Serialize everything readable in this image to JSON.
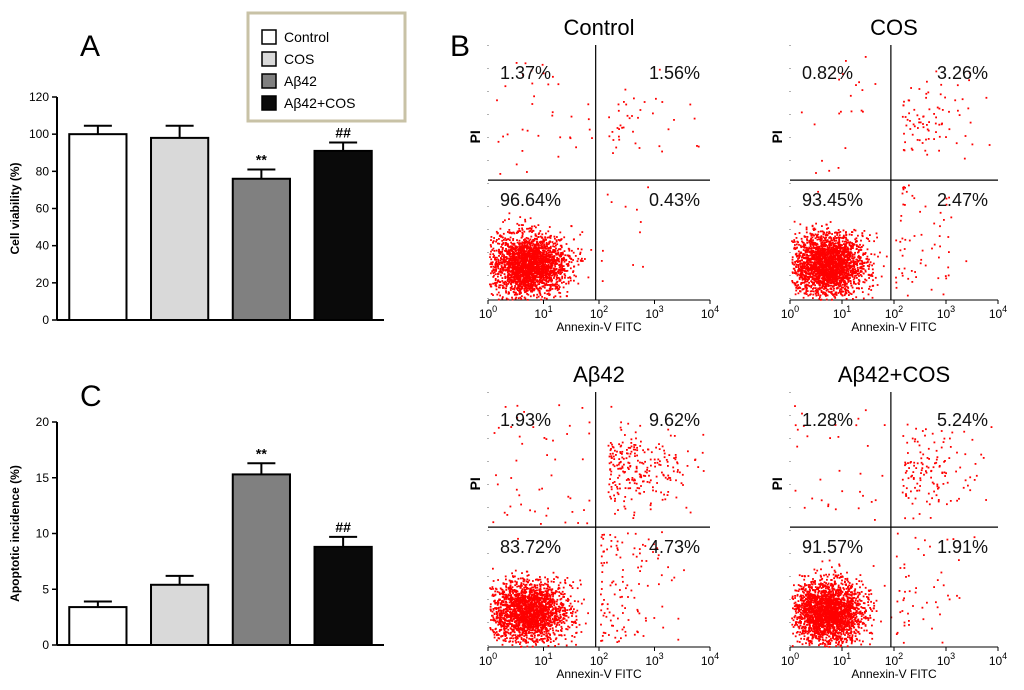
{
  "panels": {
    "A": "A",
    "B": "B",
    "C": "C"
  },
  "legend": {
    "items": [
      {
        "label": "Control",
        "color": "#ffffff"
      },
      {
        "label": "COS",
        "color": "#d9d9d9"
      },
      {
        "label": "Aβ42",
        "color": "#808080"
      },
      {
        "label": "Aβ42+COS",
        "color": "#0a0a0a"
      }
    ]
  },
  "chart_data": [
    {
      "id": "A",
      "type": "bar",
      "categories": [
        "Control",
        "COS",
        "Aβ42",
        "Aβ42+COS"
      ],
      "values": [
        100,
        98,
        76,
        91
      ],
      "errors": [
        4.5,
        6.5,
        5,
        4.5
      ],
      "annotations": [
        "",
        "",
        "**",
        "##"
      ],
      "colors": [
        "#ffffff",
        "#d9d9d9",
        "#808080",
        "#0a0a0a"
      ],
      "ylabel": "Cell viability (%)",
      "ylim": [
        0,
        120
      ],
      "yticks": [
        0,
        20,
        40,
        60,
        80,
        100,
        120
      ]
    },
    {
      "id": "C",
      "type": "bar",
      "categories": [
        "Control",
        "COS",
        "Aβ42",
        "Aβ42+COS"
      ],
      "values": [
        3.4,
        5.4,
        15.3,
        8.8
      ],
      "errors": [
        0.5,
        0.8,
        1.0,
        0.9
      ],
      "annotations": [
        "",
        "",
        "**",
        "##"
      ],
      "colors": [
        "#ffffff",
        "#d9d9d9",
        "#808080",
        "#0a0a0a"
      ],
      "ylabel": "Apoptotic incidence (%)",
      "ylim": [
        0,
        20
      ],
      "yticks": [
        0,
        5,
        10,
        15,
        20
      ]
    },
    {
      "id": "flow-control",
      "type": "scatter",
      "title": "Control",
      "xlabel": "Annexin-V FITC",
      "ylabel": "PI",
      "x_scale": "log",
      "xlim": [
        1,
        10000
      ],
      "xticks": [
        "10",
        "10",
        "10",
        "10",
        "10"
      ],
      "xtick_exp": [
        "0",
        "1",
        "2",
        "3",
        "4"
      ],
      "quadrants": {
        "upper_left": "1.37%",
        "upper_right": "1.56%",
        "lower_left": "96.64%",
        "lower_right": "0.43%"
      },
      "point_color": "#ff0000"
    },
    {
      "id": "flow-cos",
      "type": "scatter",
      "title": "COS",
      "xlabel": "Annexin-V FITC",
      "ylabel": "PI",
      "x_scale": "log",
      "xlim": [
        1,
        10000
      ],
      "xticks": [
        "10",
        "10",
        "10",
        "10",
        "10"
      ],
      "xtick_exp": [
        "0",
        "1",
        "2",
        "3",
        "4"
      ],
      "quadrants": {
        "upper_left": "0.82%",
        "upper_right": "3.26%",
        "lower_left": "93.45%",
        "lower_right": "2.47%"
      },
      "point_color": "#ff0000"
    },
    {
      "id": "flow-abeta42",
      "type": "scatter",
      "title": "Aβ42",
      "xlabel": "Annexin-V FITC",
      "ylabel": "PI",
      "x_scale": "log",
      "xlim": [
        1,
        10000
      ],
      "xticks": [
        "10",
        "10",
        "10",
        "10",
        "10"
      ],
      "xtick_exp": [
        "0",
        "1",
        "2",
        "3",
        "4"
      ],
      "quadrants": {
        "upper_left": "1.93%",
        "upper_right": "9.62%",
        "lower_left": "83.72%",
        "lower_right": "4.73%"
      },
      "point_color": "#ff0000"
    },
    {
      "id": "flow-abeta42-cos",
      "type": "scatter",
      "title": "Aβ42+COS",
      "xlabel": "Annexin-V FITC",
      "ylabel": "PI",
      "x_scale": "log",
      "xlim": [
        1,
        10000
      ],
      "xticks": [
        "10",
        "10",
        "10",
        "10",
        "10"
      ],
      "xtick_exp": [
        "0",
        "1",
        "2",
        "3",
        "4"
      ],
      "quadrants": {
        "upper_left": "1.28%",
        "upper_right": "5.24%",
        "lower_left": "91.57%",
        "lower_right": "1.91%"
      },
      "point_color": "#ff0000"
    }
  ]
}
